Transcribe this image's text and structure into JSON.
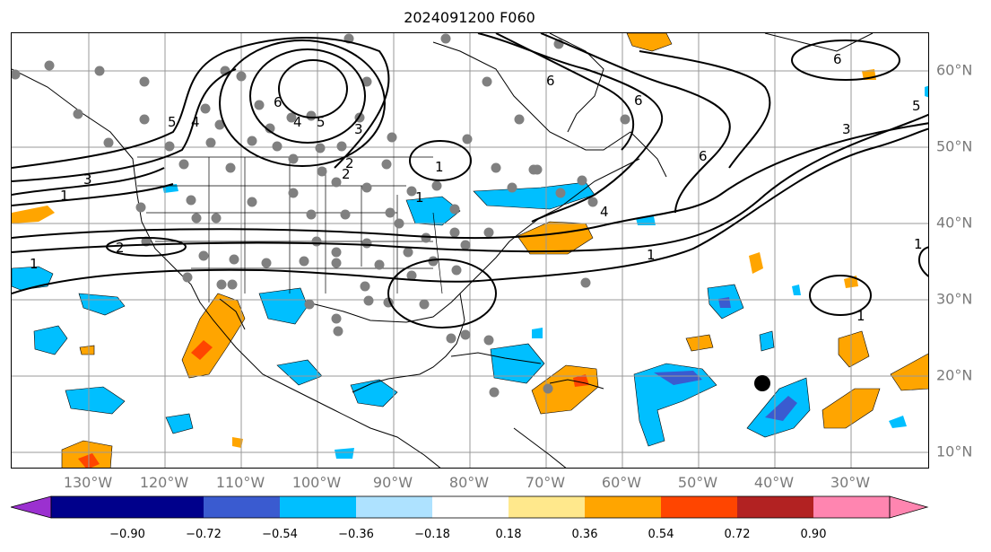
{
  "title": "2024091200 F060",
  "longitude_labels": [
    "130°W",
    "120°W",
    "110°W",
    "100°W",
    "90°W",
    "80°W",
    "70°W",
    "60°W",
    "50°W",
    "40°W",
    "30°W"
  ],
  "latitude_labels": [
    "60°N",
    "50°N",
    "40°N",
    "30°N",
    "20°N",
    "10°N"
  ],
  "colorbar": {
    "ticks": [
      "−0.90",
      "−0.72",
      "−0.54",
      "−0.36",
      "−0.18",
      "0.18",
      "0.36",
      "0.54",
      "0.72",
      "0.90"
    ],
    "colors": [
      "#9b30d0",
      "#00008b",
      "#3a5bd0",
      "#00bfff",
      "#aee2ff",
      "#ffffff",
      "#ffe88c",
      "#ffa500",
      "#ff4500",
      "#b22222",
      "#ff85b0"
    ],
    "extend": "both"
  },
  "contour_labels": [
    "1",
    "2",
    "3",
    "4",
    "5",
    "6",
    "1",
    "2",
    "1",
    "3",
    "5",
    "6",
    "1",
    "4",
    "6",
    "3",
    "1",
    "6",
    "1",
    "1",
    "2",
    "4",
    "5",
    "6"
  ],
  "colors": {
    "contour": "#000000",
    "dots": "#808080",
    "grid": "#999999",
    "coast": "#000000"
  }
}
